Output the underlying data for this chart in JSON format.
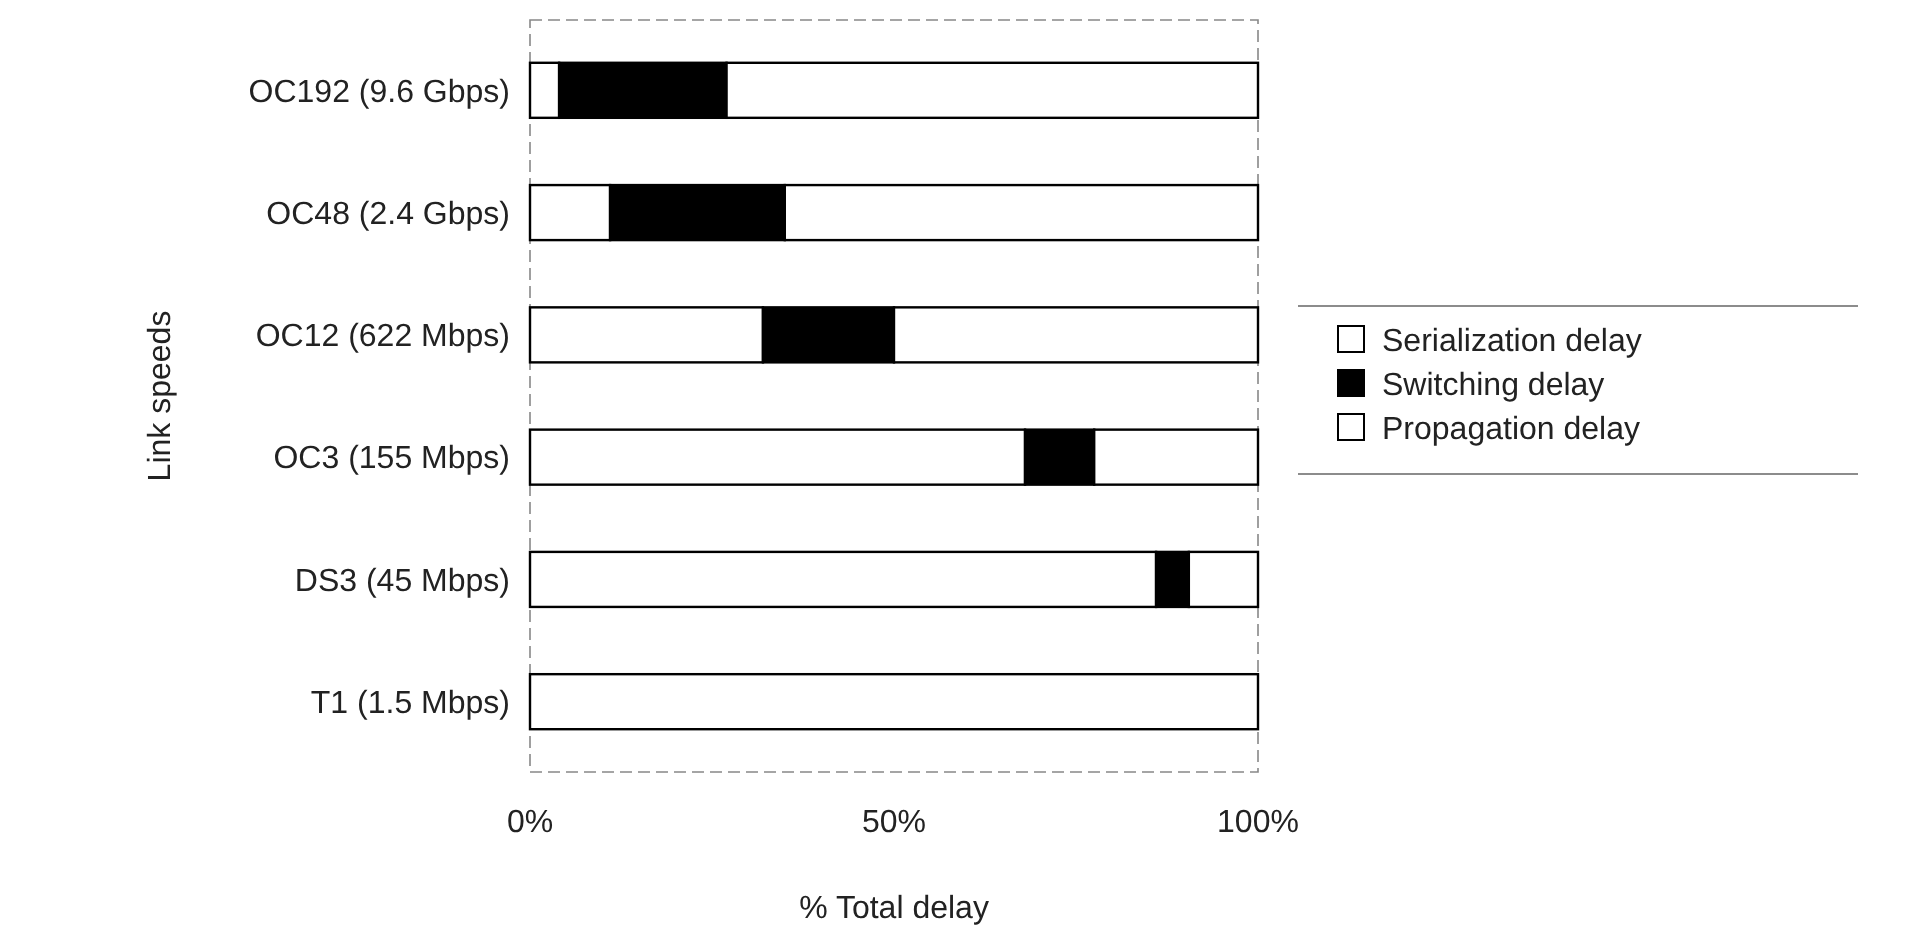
{
  "chart_data": {
    "type": "bar",
    "orientation": "horizontal",
    "stacked": true,
    "xlabel": "% Total delay",
    "ylabel": "Link speeds",
    "categories": [
      "OC192 (9.6 Gbps)",
      "OC48 (2.4 Gbps)",
      "OC12 (622 Mbps)",
      "OC3 (155 Mbps)",
      "DS3 (45 Mbps)",
      "T1 (1.5 Mbps)"
    ],
    "series": [
      {
        "name": "Serialization delay",
        "color": "#ffffff",
        "values": [
          4,
          11,
          32,
          68,
          86,
          100
        ]
      },
      {
        "name": "Switching delay",
        "color": "#000000",
        "values": [
          23,
          24,
          18,
          9.5,
          4.5,
          0
        ]
      },
      {
        "name": "Propagation delay",
        "color": "#ffffff",
        "values": [
          73,
          65,
          50,
          22.5,
          9.5,
          0
        ]
      }
    ],
    "xlim": [
      0,
      100
    ],
    "xticks": [
      {
        "value": 0,
        "label": "0%"
      },
      {
        "value": 50,
        "label": "50%"
      },
      {
        "value": 100,
        "label": "100%"
      }
    ],
    "grid": false,
    "legend": "right"
  }
}
